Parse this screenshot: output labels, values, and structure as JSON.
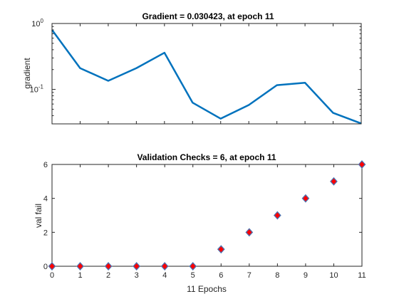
{
  "chart_data": [
    {
      "type": "line",
      "title": "Gradient = 0.030423, at epoch 11",
      "xlabel": "",
      "ylabel": "gradient",
      "yscale": "log",
      "xlim": [
        0,
        11
      ],
      "ylim": [
        0.03,
        1
      ],
      "grid": false,
      "x": [
        0,
        1,
        2,
        3,
        4,
        5,
        6,
        7,
        8,
        9,
        10,
        11
      ],
      "values": [
        0.8,
        0.21,
        0.135,
        0.21,
        0.36,
        0.063,
        0.036,
        0.058,
        0.116,
        0.126,
        0.044,
        0.030423
      ],
      "yticks": [
        0.1,
        1
      ],
      "ytick_labels": [
        {
          "base": "10",
          "exp": "-1"
        },
        {
          "base": "10",
          "exp": "0"
        }
      ],
      "colors": {
        "line": "#0072BD"
      }
    },
    {
      "type": "scatter",
      "title": "Validation Checks = 6, at epoch 11",
      "xlabel": "11 Epochs",
      "ylabel": "val fail",
      "xlim": [
        0,
        11
      ],
      "ylim": [
        0,
        6
      ],
      "grid": false,
      "x": [
        0,
        1,
        2,
        3,
        4,
        5,
        6,
        7,
        8,
        9,
        10,
        11
      ],
      "values": [
        0,
        0,
        0,
        0,
        0,
        0,
        1,
        2,
        3,
        4,
        5,
        6
      ],
      "xticks": [
        "0",
        "1",
        "2",
        "3",
        "4",
        "5",
        "6",
        "7",
        "8",
        "9",
        "10",
        "11"
      ],
      "yticks": [
        "0",
        "2",
        "4",
        "6"
      ],
      "marker": "diamond",
      "colors": {
        "marker_face": "#FF0000",
        "marker_edge": "#4C72B0"
      }
    }
  ]
}
